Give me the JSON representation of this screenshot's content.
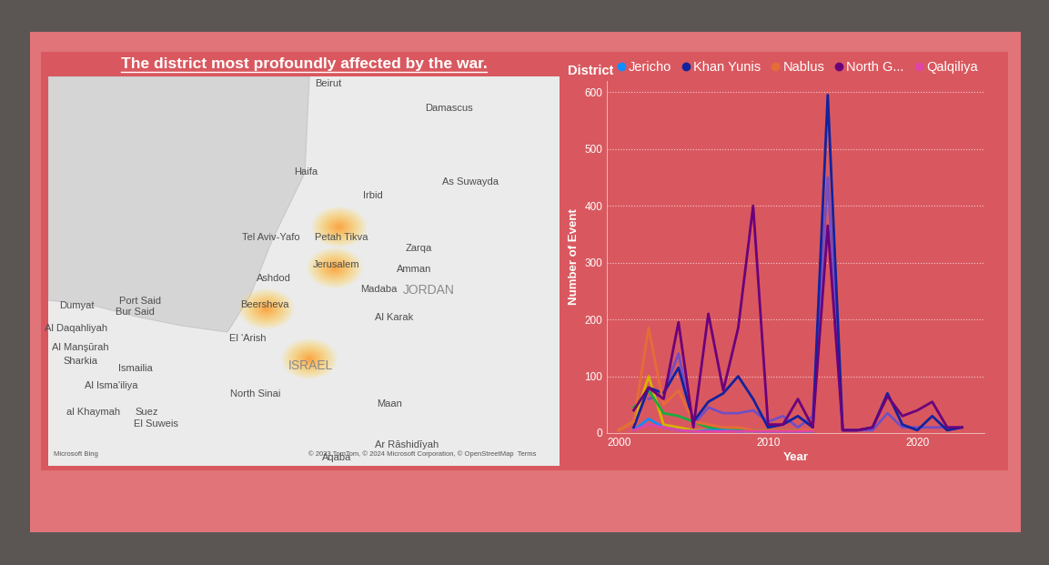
{
  "title": "The district most profoundly affected by the war.",
  "map": {
    "xlim": [
      32.61,
      37.25
    ],
    "ylim": [
      29.51,
      33.88
    ],
    "places": [
      {
        "name": "Beirut",
        "lon": 35.15,
        "lat": 33.8
      },
      {
        "name": "Damascus",
        "lon": 36.25,
        "lat": 33.52
      },
      {
        "name": "Haifa",
        "lon": 34.95,
        "lat": 32.81
      },
      {
        "name": "Irbid",
        "lon": 35.56,
        "lat": 32.54
      },
      {
        "name": "As Suwayda",
        "lon": 36.44,
        "lat": 32.7
      },
      {
        "name": "Tel Aviv-Yafo",
        "lon": 34.63,
        "lat": 32.07
      },
      {
        "name": "Petah Tikva",
        "lon": 35.27,
        "lat": 32.07
      },
      {
        "name": "Zarqa",
        "lon": 35.97,
        "lat": 31.95
      },
      {
        "name": "Amman",
        "lon": 35.93,
        "lat": 31.72
      },
      {
        "name": "Ashdod",
        "lon": 34.66,
        "lat": 31.61
      },
      {
        "name": "Jerusalem",
        "lon": 35.22,
        "lat": 31.77
      },
      {
        "name": "JORDAN",
        "lon": 36.06,
        "lat": 31.48
      },
      {
        "name": "Madaba",
        "lon": 35.61,
        "lat": 31.49
      },
      {
        "name": "Port Said",
        "lon": 33.44,
        "lat": 31.36
      },
      {
        "name": "Bur Said",
        "lon": 33.4,
        "lat": 31.24
      },
      {
        "name": "Beersheva",
        "lon": 34.57,
        "lat": 31.32
      },
      {
        "name": "Al Karak",
        "lon": 35.75,
        "lat": 31.17
      },
      {
        "name": "Dumyat",
        "lon": 32.87,
        "lat": 31.31
      },
      {
        "name": "Al Daqahliyah",
        "lon": 32.86,
        "lat": 31.05
      },
      {
        "name": "El 'Arish",
        "lon": 34.42,
        "lat": 30.94
      },
      {
        "name": "Al Manşūrah",
        "lon": 32.9,
        "lat": 30.84
      },
      {
        "name": "Sharkia",
        "lon": 32.9,
        "lat": 30.68
      },
      {
        "name": "ISRAEL",
        "lon": 34.99,
        "lat": 30.63
      },
      {
        "name": "Ismailia",
        "lon": 33.4,
        "lat": 30.6
      },
      {
        "name": "Al Isma'iliya",
        "lon": 33.18,
        "lat": 30.41
      },
      {
        "name": "North Sinai",
        "lon": 34.49,
        "lat": 30.32
      },
      {
        "name": "al Khaymah",
        "lon": 33.02,
        "lat": 30.11
      },
      {
        "name": "Suez",
        "lon": 33.5,
        "lat": 30.11
      },
      {
        "name": "El Suweis",
        "lon": 33.59,
        "lat": 29.98
      },
      {
        "name": "Maan",
        "lon": 35.71,
        "lat": 30.2
      },
      {
        "name": "Ar Rāshidīyah",
        "lon": 35.86,
        "lat": 29.74
      },
      {
        "name": "Aqaba",
        "lon": 35.23,
        "lat": 29.6
      }
    ],
    "hotspots": [
      {
        "lon": 35.25,
        "lat": 32.19
      },
      {
        "lon": 35.21,
        "lat": 31.73
      },
      {
        "lon": 34.59,
        "lat": 31.27
      },
      {
        "lon": 34.98,
        "lat": 30.71
      }
    ],
    "credits": [
      "Microsoft Bing",
      "© 2023 TomTom, © 2024 Microsoft Corporation, © OpenStreetMap  Terms"
    ]
  },
  "chart_data": {
    "type": "line",
    "x_label": "Year",
    "y_label": "Number of Event",
    "legend_title": "District",
    "legend": "upper left",
    "grid": true,
    "x": [
      2000,
      2001,
      2002,
      2003,
      2004,
      2005,
      2006,
      2007,
      2008,
      2009,
      2010,
      2011,
      2012,
      2013,
      2014,
      2015,
      2016,
      2017,
      2018,
      2019,
      2020,
      2021,
      2022,
      2023
    ],
    "xlim": [
      1999.2,
      2024.5
    ],
    "xticks": [
      2000,
      2010,
      2020
    ],
    "ylim": [
      0,
      620
    ],
    "yticks": [
      0,
      100,
      200,
      300,
      400,
      500,
      600
    ],
    "series": [
      {
        "color": "#744EC2",
        "values": [
          null,
          null,
          60,
          70,
          140,
          15,
          45,
          35,
          35,
          40,
          20,
          30,
          10,
          30,
          450,
          5,
          5,
          5,
          35,
          10,
          10,
          10,
          10,
          10
        ]
      },
      {
        "color": "#D9B300",
        "values": [
          5,
          20,
          100,
          15,
          10,
          5,
          5,
          5,
          5,
          0,
          null,
          null,
          null,
          null,
          null,
          null,
          null,
          null,
          null,
          null,
          null,
          null,
          null,
          null
        ]
      },
      {
        "color": "#1AAB40",
        "values": [
          null,
          45,
          75,
          35,
          30,
          20,
          10,
          5,
          5,
          5,
          5,
          5,
          5,
          0,
          null,
          null,
          null,
          null,
          null,
          null,
          null,
          null,
          null,
          null
        ]
      },
      {
        "name": "Jericho",
        "color": "#118DFF",
        "values": [
          null,
          5,
          25,
          10,
          5,
          3,
          5,
          5,
          3,
          3,
          3,
          3,
          3,
          3,
          null,
          null,
          null,
          null,
          null,
          null,
          null,
          null,
          null,
          null
        ]
      },
      {
        "name": "Khan Yunis",
        "color": "#12239E",
        "values": [
          null,
          10,
          80,
          70,
          115,
          20,
          55,
          70,
          100,
          60,
          10,
          15,
          30,
          10,
          595,
          5,
          5,
          10,
          70,
          15,
          5,
          30,
          5,
          10
        ]
      },
      {
        "name": "Nablus",
        "color": "#E66C37",
        "values": [
          5,
          20,
          185,
          50,
          75,
          20,
          15,
          10,
          10,
          5,
          5,
          5,
          5,
          5,
          null,
          null,
          null,
          null,
          null,
          null,
          null,
          null,
          null,
          null
        ]
      },
      {
        "name": "North G...",
        "color": "#6B007B",
        "values": [
          null,
          40,
          80,
          60,
          195,
          10,
          210,
          75,
          185,
          400,
          15,
          15,
          60,
          10,
          365,
          5,
          5,
          10,
          65,
          30,
          40,
          55,
          10,
          10
        ]
      },
      {
        "name": "Qalqiliya",
        "color": "#E044A7",
        "values": [
          null,
          5,
          15,
          10,
          5,
          3,
          3,
          3,
          3,
          3,
          3,
          3,
          3,
          3,
          null,
          null,
          null,
          null,
          null,
          null,
          null,
          null,
          null,
          null
        ]
      }
    ]
  }
}
